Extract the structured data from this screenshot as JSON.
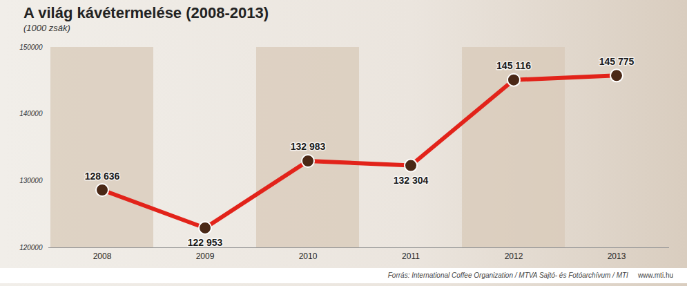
{
  "chart_data": {
    "type": "line",
    "title": "A világ kávétermelése (2008-2013)",
    "subtitle": "(1000 zsák)",
    "categories": [
      "2008",
      "2009",
      "2010",
      "2011",
      "2012",
      "2013"
    ],
    "values": [
      128636,
      122953,
      132983,
      132304,
      145116,
      145775
    ],
    "value_labels": [
      "128 636",
      "122 953",
      "132 983",
      "132 304",
      "145 116",
      "145 775"
    ],
    "color": "#e2231a",
    "marker": "circle",
    "ylim": [
      120000,
      150000
    ],
    "yticks": [
      120000,
      130000,
      140000,
      150000
    ],
    "grid": false,
    "data_labels": true,
    "source": "Forrás: International Coffee Organization / MTVA Sajtó- és Fotóarchívum / MTI",
    "url": "www.mti.hu"
  }
}
